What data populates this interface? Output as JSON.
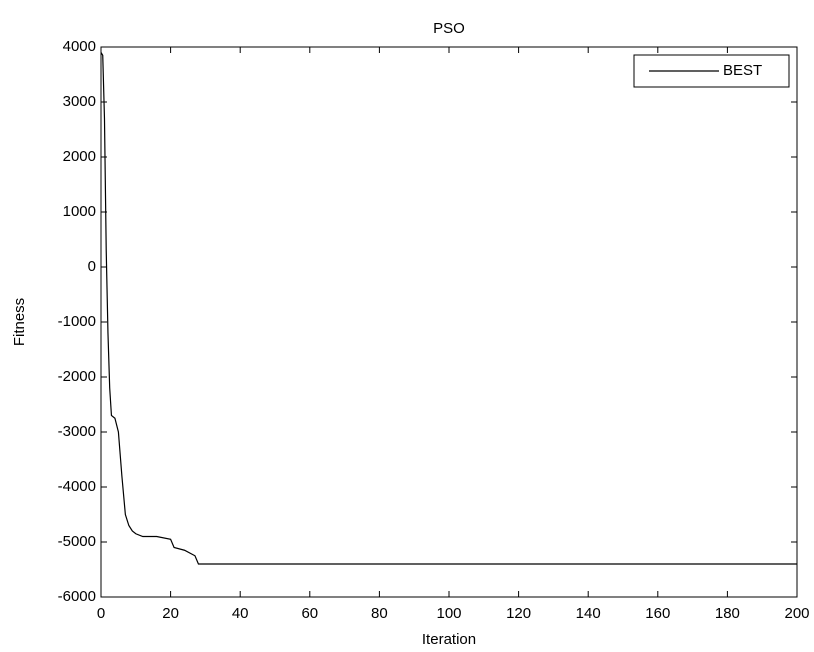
{
  "chart_data": {
    "type": "line",
    "title": "PSO",
    "xlabel": "Iteration",
    "ylabel": "Fitness",
    "x": [
      0,
      0.5,
      1,
      1.5,
      2,
      2.5,
      3,
      4,
      5,
      6,
      7,
      8,
      9,
      10,
      12,
      16,
      20,
      21,
      24,
      27,
      28,
      60,
      100,
      150,
      200
    ],
    "series": [
      {
        "name": "BEST",
        "color": "#000000",
        "values": [
          3900,
          3850,
          2700,
          300,
          -1200,
          -2200,
          -2700,
          -2750,
          -3000,
          -3800,
          -4500,
          -4700,
          -4800,
          -4850,
          -4900,
          -4900,
          -4950,
          -5100,
          -5150,
          -5250,
          -5400,
          -5400,
          -5400,
          -5400,
          -5400
        ]
      }
    ],
    "xlim": [
      0,
      200
    ],
    "xticks": [
      0,
      20,
      40,
      60,
      80,
      100,
      120,
      140,
      160,
      180,
      200
    ],
    "ylim": [
      -6000,
      4000
    ],
    "yticks": [
      -6000,
      -5000,
      -4000,
      -3000,
      -2000,
      -1000,
      0,
      1000,
      2000,
      3000,
      4000
    ],
    "grid": false,
    "legend": "upper right"
  }
}
